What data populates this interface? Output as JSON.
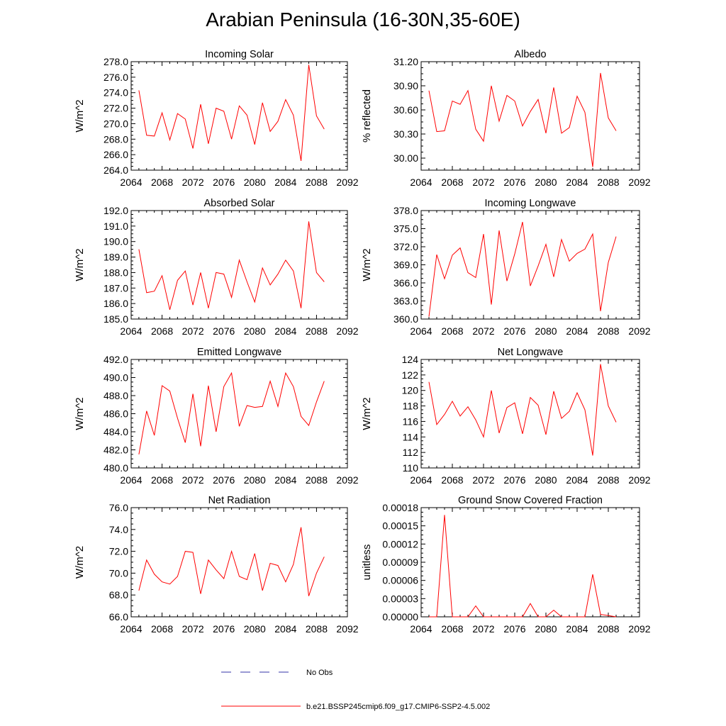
{
  "page": {
    "title": "Arabian Peninsula (16-30N,35-60E)"
  },
  "legend": {
    "items": [
      {
        "label": "No Obs",
        "color": "#3333aa",
        "style": "dashed"
      },
      {
        "label": "b.e21.BSSP245cmip6.f09_g17.CMIP6-SSP2-4.5.002",
        "color": "#ff0000",
        "style": "solid"
      }
    ]
  },
  "chart_data": [
    {
      "type": "line",
      "title": "Incoming Solar",
      "ylabel": "W/m^2",
      "xlim": [
        2064,
        2092
      ],
      "ylim": [
        264,
        278
      ],
      "xticks": [
        2064,
        2068,
        2072,
        2076,
        2080,
        2084,
        2088,
        2092
      ],
      "xtick_labels": [
        "2064",
        "2068",
        "2072",
        "2076",
        "2080",
        "2084",
        "2088",
        "2092"
      ],
      "yticks": [
        264,
        266,
        268,
        270,
        272,
        274,
        276,
        278
      ],
      "ytick_labels": [
        "264.0",
        "266.0",
        "268.0",
        "270.0",
        "272.0",
        "274.0",
        "276.0",
        "278.0"
      ],
      "series": [
        {
          "color": "#ff0000",
          "x": [
            2065,
            2066,
            2067,
            2068,
            2069,
            2070,
            2071,
            2072,
            2073,
            2074,
            2075,
            2076,
            2077,
            2078,
            2079,
            2080,
            2081,
            2082,
            2083,
            2084,
            2085,
            2086,
            2087,
            2088,
            2089
          ],
          "y": [
            274.3,
            268.5,
            268.4,
            271.4,
            267.9,
            271.3,
            270.6,
            266.8,
            272.5,
            267.4,
            272.0,
            271.6,
            268.0,
            272.3,
            271.1,
            267.3,
            272.7,
            269.0,
            270.3,
            273.1,
            271.1,
            265.2,
            277.6,
            271.0,
            269.3
          ]
        }
      ]
    },
    {
      "type": "line",
      "title": "Albedo",
      "ylabel": "% reflected",
      "xlim": [
        2064,
        2092
      ],
      "ylim": [
        29.85,
        31.2
      ],
      "xticks": [
        2064,
        2068,
        2072,
        2076,
        2080,
        2084,
        2088,
        2092
      ],
      "xtick_labels": [
        "2064",
        "2068",
        "2072",
        "2076",
        "2080",
        "2084",
        "2088",
        "2092"
      ],
      "yticks": [
        30.0,
        30.3,
        30.6,
        30.9,
        31.2
      ],
      "ytick_labels": [
        "30.00",
        "30.30",
        "30.60",
        "30.90",
        "31.20"
      ],
      "series": [
        {
          "color": "#ff0000",
          "x": [
            2065,
            2066,
            2067,
            2068,
            2069,
            2070,
            2071,
            2072,
            2073,
            2074,
            2075,
            2076,
            2077,
            2078,
            2079,
            2080,
            2081,
            2082,
            2083,
            2084,
            2085,
            2086,
            2087,
            2088,
            2089
          ],
          "y": [
            30.84,
            30.33,
            30.34,
            30.71,
            30.67,
            30.84,
            30.36,
            30.21,
            30.9,
            30.46,
            30.78,
            30.71,
            30.4,
            30.58,
            30.73,
            30.31,
            30.88,
            30.31,
            30.38,
            30.77,
            30.57,
            29.89,
            31.06,
            30.5,
            30.34
          ]
        }
      ]
    },
    {
      "type": "line",
      "title": "Absorbed Solar",
      "ylabel": "W/m^2",
      "xlim": [
        2064,
        2092
      ],
      "ylim": [
        185,
        192
      ],
      "xticks": [
        2064,
        2068,
        2072,
        2076,
        2080,
        2084,
        2088,
        2092
      ],
      "xtick_labels": [
        "2064",
        "2068",
        "2072",
        "2076",
        "2080",
        "2084",
        "2088",
        "2092"
      ],
      "yticks": [
        185,
        186,
        187,
        188,
        189,
        190,
        191,
        192
      ],
      "ytick_labels": [
        "185.0",
        "186.0",
        "187.0",
        "188.0",
        "189.0",
        "190.0",
        "191.0",
        "192.0"
      ],
      "series": [
        {
          "color": "#ff0000",
          "x": [
            2065,
            2066,
            2067,
            2068,
            2069,
            2070,
            2071,
            2072,
            2073,
            2074,
            2075,
            2076,
            2077,
            2078,
            2079,
            2080,
            2081,
            2082,
            2083,
            2084,
            2085,
            2086,
            2087,
            2088,
            2089
          ],
          "y": [
            189.5,
            186.7,
            186.8,
            187.8,
            185.6,
            187.5,
            188.1,
            185.9,
            188.0,
            185.7,
            188.0,
            187.9,
            186.4,
            188.8,
            187.4,
            186.1,
            188.3,
            187.2,
            187.9,
            188.8,
            188.1,
            185.7,
            191.3,
            188.0,
            187.4
          ]
        }
      ]
    },
    {
      "type": "line",
      "title": "Incoming Longwave",
      "ylabel": "W/m^2",
      "xlim": [
        2064,
        2092
      ],
      "ylim": [
        360,
        378
      ],
      "xticks": [
        2064,
        2068,
        2072,
        2076,
        2080,
        2084,
        2088,
        2092
      ],
      "xtick_labels": [
        "2064",
        "2068",
        "2072",
        "2076",
        "2080",
        "2084",
        "2088",
        "2092"
      ],
      "yticks": [
        360,
        363,
        366,
        369,
        372,
        375,
        378
      ],
      "ytick_labels": [
        "360.0",
        "363.0",
        "366.0",
        "369.0",
        "372.0",
        "375.0",
        "378.0"
      ],
      "series": [
        {
          "color": "#ff0000",
          "x": [
            2065,
            2066,
            2067,
            2068,
            2069,
            2070,
            2071,
            2072,
            2073,
            2074,
            2075,
            2076,
            2077,
            2078,
            2079,
            2080,
            2081,
            2082,
            2083,
            2084,
            2085,
            2086,
            2087,
            2088,
            2089
          ],
          "y": [
            360.4,
            370.7,
            366.7,
            370.6,
            371.8,
            367.7,
            366.9,
            374.1,
            362.4,
            374.7,
            366.3,
            370.8,
            376.1,
            365.5,
            368.8,
            372.4,
            367.0,
            373.2,
            369.6,
            370.9,
            371.6,
            374.1,
            361.3,
            369.4,
            373.7
          ]
        }
      ]
    },
    {
      "type": "line",
      "title": "Emitted Longwave",
      "ylabel": "W/m^2",
      "xlim": [
        2064,
        2092
      ],
      "ylim": [
        480,
        492
      ],
      "xticks": [
        2064,
        2068,
        2072,
        2076,
        2080,
        2084,
        2088,
        2092
      ],
      "xtick_labels": [
        "2064",
        "2068",
        "2072",
        "2076",
        "2080",
        "2084",
        "2088",
        "2092"
      ],
      "yticks": [
        480,
        482,
        484,
        486,
        488,
        490,
        492
      ],
      "ytick_labels": [
        "480.0",
        "482.0",
        "484.0",
        "486.0",
        "488.0",
        "490.0",
        "492.0"
      ],
      "series": [
        {
          "color": "#ff0000",
          "x": [
            2065,
            2066,
            2067,
            2068,
            2069,
            2070,
            2071,
            2072,
            2073,
            2074,
            2075,
            2076,
            2077,
            2078,
            2079,
            2080,
            2081,
            2082,
            2083,
            2084,
            2085,
            2086,
            2087,
            2088,
            2089
          ],
          "y": [
            481.5,
            486.3,
            483.6,
            489.1,
            488.5,
            485.5,
            482.8,
            488.2,
            482.4,
            489.1,
            484.0,
            489.0,
            490.5,
            484.6,
            486.9,
            486.7,
            486.8,
            489.6,
            486.8,
            490.5,
            489.0,
            485.7,
            484.7,
            487.3,
            489.6
          ]
        }
      ]
    },
    {
      "type": "line",
      "title": "Net Longwave",
      "ylabel": "W/m^2",
      "xlim": [
        2064,
        2092
      ],
      "ylim": [
        110,
        124
      ],
      "xticks": [
        2064,
        2068,
        2072,
        2076,
        2080,
        2084,
        2088,
        2092
      ],
      "xtick_labels": [
        "2064",
        "2068",
        "2072",
        "2076",
        "2080",
        "2084",
        "2088",
        "2092"
      ],
      "yticks": [
        110,
        112,
        114,
        116,
        118,
        120,
        122,
        124
      ],
      "ytick_labels": [
        "110",
        "112",
        "114",
        "116",
        "118",
        "120",
        "122",
        "124"
      ],
      "series": [
        {
          "color": "#ff0000",
          "x": [
            2065,
            2066,
            2067,
            2068,
            2069,
            2070,
            2071,
            2072,
            2073,
            2074,
            2075,
            2076,
            2077,
            2078,
            2079,
            2080,
            2081,
            2082,
            2083,
            2084,
            2085,
            2086,
            2087,
            2088,
            2089
          ],
          "y": [
            121.1,
            115.6,
            116.9,
            118.6,
            116.7,
            117.9,
            116.2,
            114.0,
            120.0,
            114.5,
            117.8,
            118.4,
            114.4,
            119.1,
            118.1,
            114.3,
            119.9,
            116.4,
            117.3,
            119.7,
            117.5,
            111.6,
            123.4,
            118.0,
            115.9
          ]
        }
      ]
    },
    {
      "type": "line",
      "title": "Net Radiation",
      "ylabel": "W/m^2",
      "xlim": [
        2064,
        2092
      ],
      "ylim": [
        66,
        76
      ],
      "xticks": [
        2064,
        2068,
        2072,
        2076,
        2080,
        2084,
        2088,
        2092
      ],
      "xtick_labels": [
        "2064",
        "2068",
        "2072",
        "2076",
        "2080",
        "2084",
        "2088",
        "2092"
      ],
      "yticks": [
        66,
        68,
        70,
        72,
        74,
        76
      ],
      "ytick_labels": [
        "66.0",
        "68.0",
        "70.0",
        "72.0",
        "74.0",
        "76.0"
      ],
      "series": [
        {
          "color": "#ff0000",
          "x": [
            2065,
            2066,
            2067,
            2068,
            2069,
            2070,
            2071,
            2072,
            2073,
            2074,
            2075,
            2076,
            2077,
            2078,
            2079,
            2080,
            2081,
            2082,
            2083,
            2084,
            2085,
            2086,
            2087,
            2088,
            2089
          ],
          "y": [
            68.4,
            71.2,
            69.9,
            69.2,
            69.0,
            69.7,
            72.0,
            71.9,
            68.1,
            71.2,
            70.3,
            69.5,
            72.0,
            69.7,
            69.4,
            71.8,
            68.4,
            70.9,
            70.7,
            69.2,
            70.8,
            74.2,
            67.9,
            70.0,
            71.5
          ]
        }
      ]
    },
    {
      "type": "line",
      "title": "Ground Snow Covered Fraction",
      "ylabel": "unitless",
      "xlim": [
        2064,
        2092
      ],
      "ylim": [
        0,
        0.00018
      ],
      "xticks": [
        2064,
        2068,
        2072,
        2076,
        2080,
        2084,
        2088,
        2092
      ],
      "xtick_labels": [
        "2064",
        "2068",
        "2072",
        "2076",
        "2080",
        "2084",
        "2088",
        "2092"
      ],
      "yticks": [
        0,
        3e-05,
        6e-05,
        9e-05,
        0.00012,
        0.00015,
        0.00018
      ],
      "ytick_labels": [
        "0.00000",
        "0.00003",
        "0.00006",
        "0.00009",
        "0.00012",
        "0.00015",
        "0.00018"
      ],
      "series": [
        {
          "color": "#ff0000",
          "x": [
            2065,
            2066,
            2067,
            2068,
            2069,
            2070,
            2071,
            2072,
            2073,
            2074,
            2075,
            2076,
            2077,
            2078,
            2079,
            2080,
            2081,
            2082,
            2083,
            2084,
            2085,
            2086,
            2087,
            2088,
            2089
          ],
          "y": [
            0,
            0,
            0.000168,
            0,
            0,
            0,
            1.8e-05,
            0,
            0,
            0,
            0,
            0,
            0,
            2.2e-05,
            0,
            0,
            1.1e-05,
            0,
            0,
            0,
            0,
            7e-05,
            4e-06,
            2e-06,
            0
          ]
        }
      ]
    }
  ]
}
